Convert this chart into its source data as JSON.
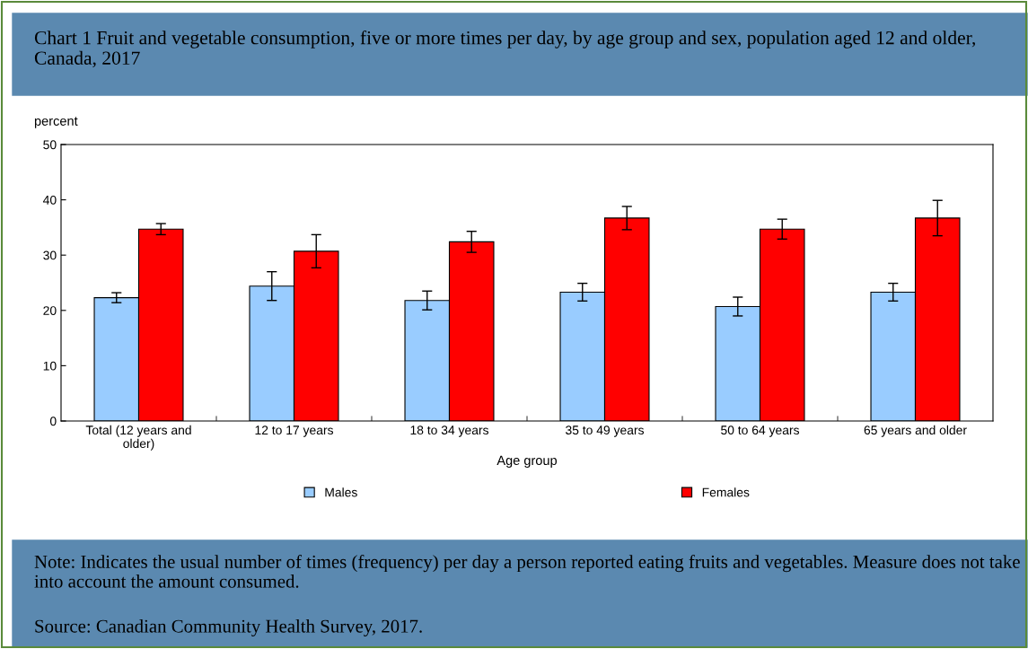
{
  "chart_data": {
    "type": "bar",
    "title": "Chart 1 Fruit and vegetable consumption, five or more times per day, by age group and sex, population aged 12 and older, Canada, 2017",
    "xlabel": "Age group",
    "ylabel": "percent",
    "categories": [
      "Total (12 years and\nolder)",
      "12 to 17 years",
      "18 to 34 years",
      "35 to 49 years",
      "50 to 64 years",
      "65 years and older"
    ],
    "series": [
      {
        "name": "Males",
        "color": "#99ccff",
        "values": [
          22.3,
          24.4,
          21.8,
          23.3,
          20.7,
          23.3
        ],
        "errors": [
          0.9,
          2.6,
          1.7,
          1.6,
          1.7,
          1.6
        ]
      },
      {
        "name": "Females",
        "color": "#ff0000",
        "values": [
          34.7,
          30.7,
          32.4,
          36.7,
          34.7,
          36.7
        ],
        "errors": [
          1.0,
          3.0,
          1.9,
          2.1,
          1.8,
          3.2
        ]
      }
    ],
    "ylim": [
      0,
      50
    ],
    "yticks": [
      0,
      10,
      20,
      30,
      40,
      50
    ],
    "grid": false,
    "legend": "bottom",
    "annotations": [
      "Note: Indicates the usual number of times (frequency) per day a person reported eating fruits and vegetables. Measure does not take into account the amount consumed.",
      "Source: Canadian Community Health Survey, 2017."
    ]
  }
}
